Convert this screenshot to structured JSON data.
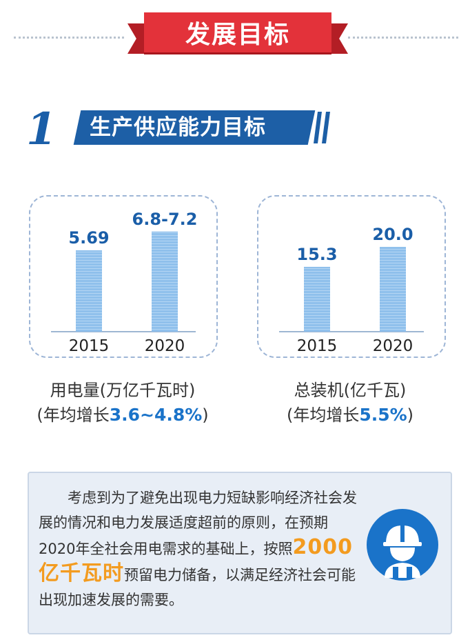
{
  "header": {
    "title": "发展目标"
  },
  "section": {
    "number": "1",
    "title": "生产供应能力目标"
  },
  "chart_data": [
    {
      "type": "bar",
      "categories": [
        "2015",
        "2020"
      ],
      "values": [
        5.69,
        7.0
      ],
      "value_labels": [
        "5.69",
        "6.8-7.2"
      ],
      "caption": "用电量(万亿千瓦时)",
      "rate_prefix": "(年均增长",
      "rate": "3.6~4.8%",
      "rate_suffix": ")",
      "ylim": [
        0,
        8
      ]
    },
    {
      "type": "bar",
      "categories": [
        "2015",
        "2020"
      ],
      "values": [
        15.3,
        20.0
      ],
      "value_labels": [
        "15.3",
        "20.0"
      ],
      "caption": "总装机(亿千瓦)",
      "rate_prefix": "(年均增长",
      "rate": "5.5%",
      "rate_suffix": ")",
      "ylim": [
        0,
        27
      ]
    }
  ],
  "note": {
    "text_before": "考虑到为了避免出现电力短缺影响经济社会发展的情况和电力发展适度超前的原则，在预期2020年全社会用电需求的基础上，按照",
    "highlight": "2000亿千瓦时",
    "text_after": "预留电力储备，以满足经济社会可能出现加速发展的需要。",
    "icon": "worker-icon"
  },
  "colors": {
    "banner": "#e3323a",
    "section_bar": "#1d5fa6",
    "bar_fill": "#8fc0ec",
    "value_label": "#1a5ea8",
    "highlight": "#f39b1f"
  }
}
